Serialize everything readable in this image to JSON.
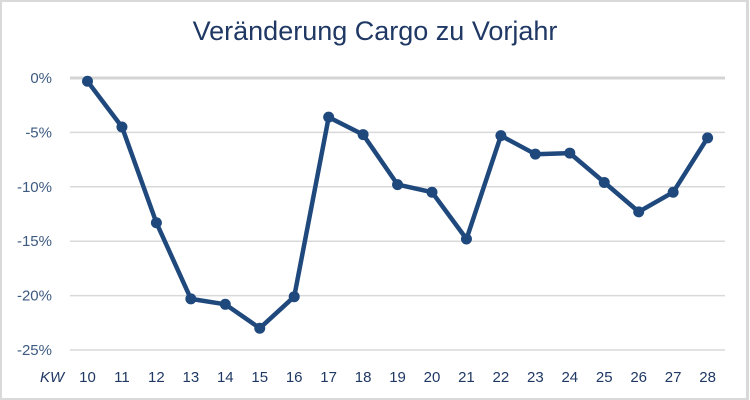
{
  "chart_data": {
    "type": "line",
    "title": "Veränderung Cargo zu Vorjahr",
    "xlabel": "KW",
    "ylabel": "",
    "categories": [
      "10",
      "11",
      "12",
      "13",
      "14",
      "15",
      "16",
      "17",
      "18",
      "19",
      "20",
      "21",
      "22",
      "23",
      "24",
      "25",
      "26",
      "27",
      "28"
    ],
    "values": [
      -0.3,
      -4.5,
      -13.3,
      -20.3,
      -20.8,
      -23.0,
      -20.1,
      -3.6,
      -5.2,
      -9.8,
      -10.5,
      -14.8,
      -5.3,
      -7.0,
      -6.9,
      -9.6,
      -12.3,
      -10.5,
      -5.5
    ],
    "unit": "%",
    "ylim": [
      -25,
      0
    ],
    "yticks": [
      "0%",
      "-5%",
      "-10%",
      "-15%",
      "-20%",
      "-25%"
    ],
    "ytick_values": [
      0,
      -5,
      -10,
      -15,
      -20,
      -25
    ],
    "grid": true,
    "legend": "none",
    "markers": true,
    "line_color": "#1f497d",
    "grid_color": "#d9d9d9"
  }
}
